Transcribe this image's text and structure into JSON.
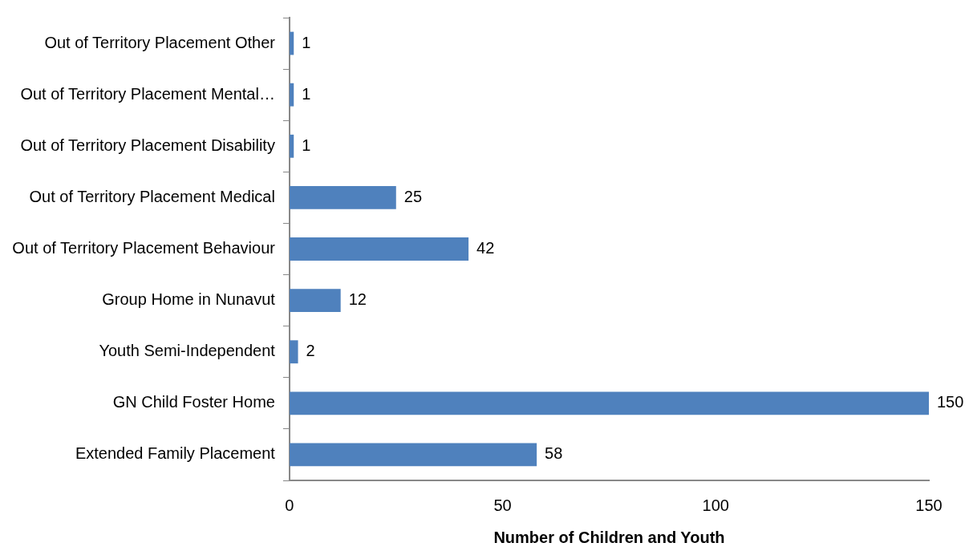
{
  "chart_data": {
    "type": "bar",
    "orientation": "horizontal",
    "xlabel": "Number of Children and Youth",
    "categories": [
      "Out of Territory Placement Other",
      "Out of Territory Placement Mental…",
      "Out of Territory Placement Disability",
      "Out of Territory Placement Medical",
      "Out of Territory Placement Behaviour",
      "Group Home in Nunavut",
      "Youth Semi-Independent",
      "GN Child Foster Home",
      "Extended Family Placement"
    ],
    "values": [
      1,
      1,
      1,
      25,
      42,
      12,
      2,
      150,
      58
    ],
    "color": "#4f81bd",
    "xlim": [
      0,
      150
    ],
    "xticks": [
      0,
      50,
      100,
      150
    ],
    "data_labels": true,
    "grid": false,
    "legend": false
  }
}
